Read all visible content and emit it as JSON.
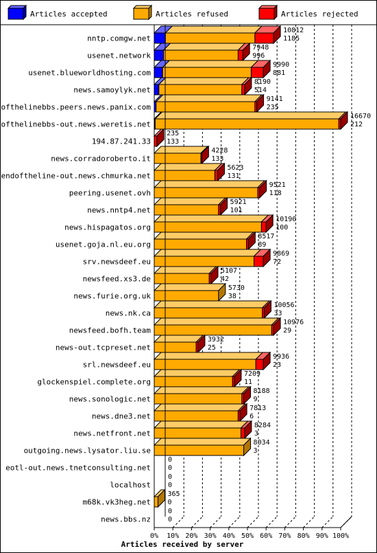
{
  "chart_data": {
    "type": "bar",
    "orientation": "horizontal",
    "stacked": true,
    "title": "",
    "xlabel": "Articles received by server",
    "ylabel": "",
    "xlim": [
      0,
      100
    ],
    "x_ticks": [
      "0%",
      "10%",
      "20%",
      "30%",
      "40%",
      "50%",
      "60%",
      "70%",
      "80%",
      "90%",
      "100%"
    ],
    "grid": true,
    "legend_position": "top",
    "series": [
      {
        "name": "Articles accepted",
        "color": "#0000ff"
      },
      {
        "name": "Articles refused",
        "color": "#ffaa00"
      },
      {
        "name": "Articles rejected",
        "color": "#ff0000"
      }
    ],
    "rows": [
      {
        "server": "nntp.comgw.net",
        "accepted_pct": 6.0,
        "refused_pct": 48.0,
        "rejected_pct": 10.0,
        "total": "10812",
        "secondary": "1185"
      },
      {
        "server": "usenet.network",
        "accepted_pct": 5.0,
        "refused_pct": 40.0,
        "rejected_pct": 2.5,
        "total": "7948",
        "secondary": "996"
      },
      {
        "server": "usenet.blueworldhosting.com",
        "accepted_pct": 4.5,
        "refused_pct": 47.5,
        "rejected_pct": 6.5,
        "total": "9990",
        "secondary": "881"
      },
      {
        "server": "news.samoylyk.net",
        "accepted_pct": 2.5,
        "refused_pct": 44.5,
        "rejected_pct": 1.5,
        "total": "8190",
        "secondary": "514"
      },
      {
        "server": "endofthelinebbs.peers.news.panix.com",
        "accepted_pct": 1.0,
        "refused_pct": 53.0,
        "rejected_pct": 1.0,
        "total": "9141",
        "secondary": "235"
      },
      {
        "server": "endofthelinebbs-out.news.weretis.net",
        "accepted_pct": 0.5,
        "refused_pct": 98.5,
        "rejected_pct": 1.0,
        "total": "16670",
        "secondary": "212"
      },
      {
        "server": "194.87.241.33",
        "accepted_pct": 0.0,
        "refused_pct": 0.0,
        "rejected_pct": 1.5,
        "total": "235",
        "secondary": "133"
      },
      {
        "server": "news.corradoroberto.it",
        "accepted_pct": 0.0,
        "refused_pct": 25.0,
        "rejected_pct": 0.5,
        "total": "4228",
        "secondary": "133"
      },
      {
        "server": "endoftheline-out.news.chmurka.net",
        "accepted_pct": 0.0,
        "refused_pct": 32.5,
        "rejected_pct": 1.5,
        "total": "5623",
        "secondary": "131"
      },
      {
        "server": "peering.usenet.ovh",
        "accepted_pct": 0.0,
        "refused_pct": 55.5,
        "rejected_pct": 1.0,
        "total": "9521",
        "secondary": "118"
      },
      {
        "server": "news.nntp4.net",
        "accepted_pct": 0.0,
        "refused_pct": 34.5,
        "rejected_pct": 1.0,
        "total": "5921",
        "secondary": "101"
      },
      {
        "server": "news.hispagatos.org",
        "accepted_pct": 0.0,
        "refused_pct": 57.5,
        "rejected_pct": 2.5,
        "total": "10190",
        "secondary": "100"
      },
      {
        "server": "usenet.goja.nl.eu.org",
        "accepted_pct": 0.0,
        "refused_pct": 49.5,
        "rejected_pct": 1.0,
        "total": "8517",
        "secondary": "89"
      },
      {
        "server": "srv.newsdeef.eu",
        "accepted_pct": 0.0,
        "refused_pct": 53.5,
        "rejected_pct": 5.0,
        "total": "9869",
        "secondary": "72"
      },
      {
        "server": "newsfeed.xs3.de",
        "accepted_pct": 0.0,
        "refused_pct": 29.5,
        "rejected_pct": 1.0,
        "total": "5107",
        "secondary": "42"
      },
      {
        "server": "news.furie.org.uk",
        "accepted_pct": 0.0,
        "refused_pct": 34.5,
        "rejected_pct": 0.0,
        "total": "5730",
        "secondary": "38"
      },
      {
        "server": "news.nk.ca",
        "accepted_pct": 0.0,
        "refused_pct": 58.0,
        "rejected_pct": 1.0,
        "total": "10056",
        "secondary": "33"
      },
      {
        "server": "newsfeed.bofh.team",
        "accepted_pct": 0.0,
        "refused_pct": 63.0,
        "rejected_pct": 1.0,
        "total": "10976",
        "secondary": "29"
      },
      {
        "server": "news-out.tcpreset.net",
        "accepted_pct": 0.0,
        "refused_pct": 22.5,
        "rejected_pct": 1.0,
        "total": "3932",
        "secondary": "25"
      },
      {
        "server": "srl.newsdeef.eu",
        "accepted_pct": 0.0,
        "refused_pct": 54.5,
        "rejected_pct": 4.0,
        "total": "9936",
        "secondary": "23"
      },
      {
        "server": "glockenspiel.complete.org",
        "accepted_pct": 0.0,
        "refused_pct": 42.0,
        "rejected_pct": 1.0,
        "total": "7209",
        "secondary": "11"
      },
      {
        "server": "news.sonologic.net",
        "accepted_pct": 0.0,
        "refused_pct": 47.0,
        "rejected_pct": 1.0,
        "total": "8188",
        "secondary": "9"
      },
      {
        "server": "news.dne3.net",
        "accepted_pct": 0.0,
        "refused_pct": 45.0,
        "rejected_pct": 1.0,
        "total": "7813",
        "secondary": "6"
      },
      {
        "server": "news.netfront.net",
        "accepted_pct": 0.0,
        "refused_pct": 46.5,
        "rejected_pct": 2.0,
        "total": "8284",
        "secondary": "3"
      },
      {
        "server": "outgoing.news.lysator.liu.se",
        "accepted_pct": 0.0,
        "refused_pct": 48.0,
        "rejected_pct": 0.0,
        "total": "8034",
        "secondary": "3"
      },
      {
        "server": "eotl-out.news.tnetconsulting.net",
        "accepted_pct": 0.0,
        "refused_pct": 0.0,
        "rejected_pct": 0.0,
        "total": "0",
        "secondary": "0"
      },
      {
        "server": "localhost",
        "accepted_pct": 0.0,
        "refused_pct": 0.0,
        "rejected_pct": 0.0,
        "total": "0",
        "secondary": "0"
      },
      {
        "server": "m68k.vk3heg.net",
        "accepted_pct": 0.0,
        "refused_pct": 2.0,
        "rejected_pct": 0.0,
        "total": "365",
        "secondary": "0"
      },
      {
        "server": "news.bbs.nz",
        "accepted_pct": 0.0,
        "refused_pct": 0.0,
        "rejected_pct": 0.0,
        "total": "0",
        "secondary": "0"
      }
    ]
  }
}
